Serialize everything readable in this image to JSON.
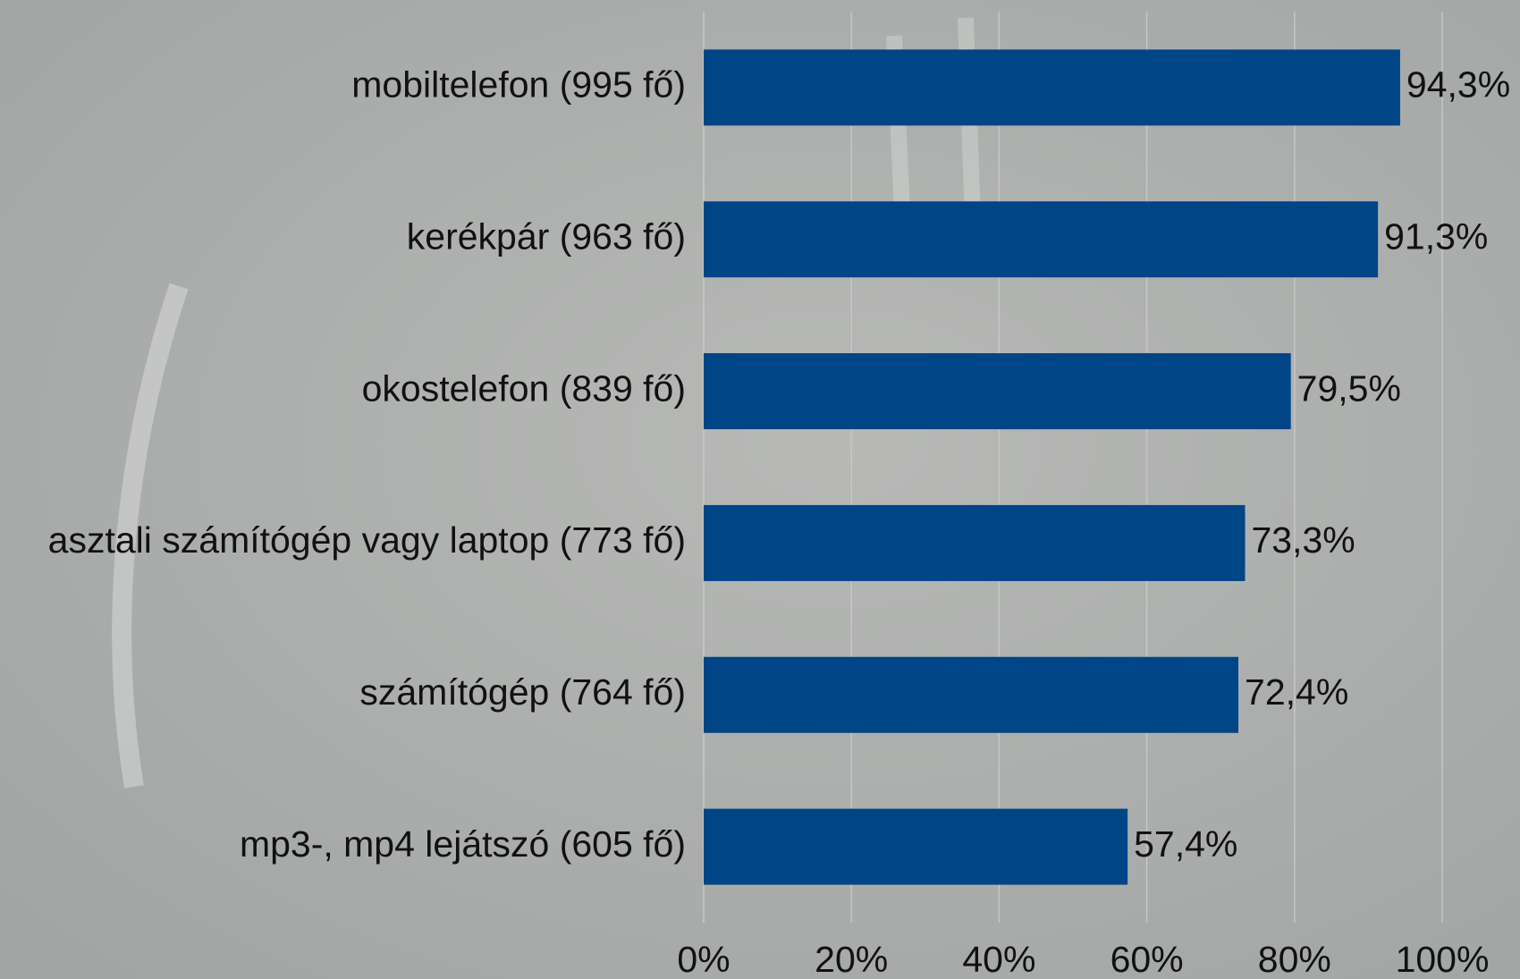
{
  "chart_data": {
    "type": "bar",
    "orientation": "horizontal",
    "categories": [
      "mobiltelefon (995 fő)",
      "kerékpár (963 fő)",
      "okostelefon (839 fő)",
      "asztali számítógép vagy laptop (773 fő)",
      "számítógép (764 fő)",
      "mp3-, mp4 lejátszó (605 fő)"
    ],
    "values": [
      94.3,
      91.3,
      79.5,
      73.3,
      72.4,
      57.4
    ],
    "value_labels": [
      "94,3%",
      "91,3%",
      "79,5%",
      "73,3%",
      "72,4%",
      "57,4%"
    ],
    "color": "#004586",
    "xlim": [
      0,
      100
    ],
    "xticks": [
      {
        "value": 0,
        "label": "0%"
      },
      {
        "value": 20,
        "label": "20%"
      },
      {
        "value": 40,
        "label": "40%"
      },
      {
        "value": 60,
        "label": "60%"
      },
      {
        "value": 80,
        "label": "80%"
      },
      {
        "value": 100,
        "label": "100%"
      }
    ],
    "grid": true
  }
}
